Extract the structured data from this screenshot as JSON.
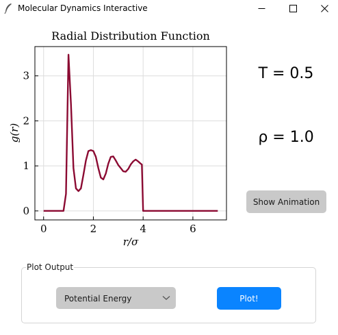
{
  "window": {
    "title": "Molecular Dynamics Interactive",
    "app_icon": "feather-icon",
    "controls": [
      "minimize-icon",
      "maximize-icon",
      "close-icon"
    ]
  },
  "readouts": {
    "temperature": "T = 0.5",
    "density": "ρ = 1.0"
  },
  "buttons": {
    "show_animation": "Show Animation",
    "plot": "Plot!"
  },
  "plot_output": {
    "legend": "Plot Output",
    "selected": "Potential Energy"
  },
  "colors": {
    "line": "#8b0a32",
    "plot_button": "#0a84ff",
    "neutral_button": "#c9c9c9"
  },
  "chart_data": {
    "type": "line",
    "title": "Radial Distribution Function",
    "xlabel": "r/σ",
    "ylabel": "g(r)",
    "xlim": [
      -0.35,
      7.35
    ],
    "ylim": [
      -0.2,
      3.65
    ],
    "xticks": [
      0,
      2,
      4,
      6
    ],
    "yticks": [
      0,
      1,
      2,
      3
    ],
    "grid": true,
    "series": [
      {
        "x": [
          0,
          0.2,
          0.4,
          0.6,
          0.8,
          0.9,
          1.0,
          1.1,
          1.2,
          1.3,
          1.4,
          1.5,
          1.6,
          1.7,
          1.8,
          1.9,
          2.0,
          2.1,
          2.2,
          2.3,
          2.4,
          2.5,
          2.6,
          2.7,
          2.8,
          2.9,
          3.0,
          3.1,
          3.2,
          3.3,
          3.4,
          3.5,
          3.6,
          3.7,
          3.8,
          3.9,
          3.95,
          4.0,
          4.2,
          4.5,
          5,
          5.5,
          6,
          6.5,
          7
        ],
        "y": [
          0,
          0,
          0,
          0,
          0,
          0.38,
          3.47,
          2.37,
          0.95,
          0.5,
          0.44,
          0.5,
          0.8,
          1.12,
          1.33,
          1.35,
          1.33,
          1.2,
          0.95,
          0.74,
          0.7,
          0.83,
          1.05,
          1.2,
          1.21,
          1.12,
          1.02,
          0.95,
          0.88,
          0.87,
          0.93,
          1.03,
          1.1,
          1.14,
          1.1,
          1.05,
          1.03,
          0,
          0,
          0,
          0,
          0,
          0,
          0,
          0
        ]
      }
    ]
  }
}
